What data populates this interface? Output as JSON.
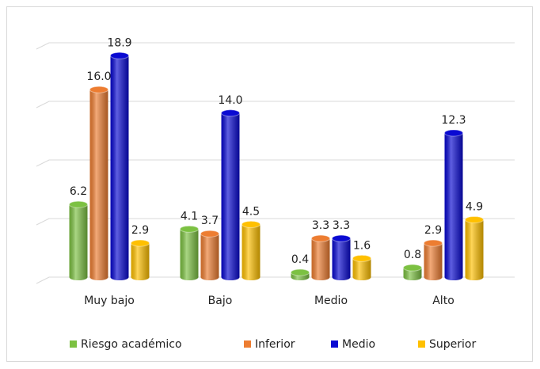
{
  "chart_data": {
    "type": "bar3d",
    "categories": [
      "Muy bajo",
      "Bajo",
      "Medio",
      "Alto"
    ],
    "series": [
      {
        "name": "Riesgo académico",
        "color": "#7cc142",
        "values": [
          6.2,
          4.1,
          0.4,
          0.8
        ],
        "value_labels": [
          "6.2",
          "4.1",
          "0.4",
          "0.8"
        ]
      },
      {
        "name": "Inferior",
        "color": "#ed7d31",
        "values": [
          16.0,
          3.7,
          3.3,
          2.9
        ],
        "value_labels": [
          "16.0",
          "3.7",
          "3.3",
          "2.9"
        ]
      },
      {
        "name": "Medio",
        "color": "#0a0ad2",
        "values": [
          18.9,
          14.0,
          3.3,
          12.3
        ],
        "value_labels": [
          "18.9",
          "14.0",
          "3.3",
          "12.3"
        ]
      },
      {
        "name": "Superior",
        "color": "#ffc000",
        "values": [
          2.9,
          4.5,
          1.6,
          4.9
        ],
        "value_labels": [
          "2.9",
          "4.5",
          "1.6",
          "4.9"
        ]
      }
    ],
    "ylim": [
      0,
      20
    ],
    "yticks": [
      0,
      5,
      10,
      15,
      20
    ],
    "grid": true,
    "legend": "bottom"
  }
}
